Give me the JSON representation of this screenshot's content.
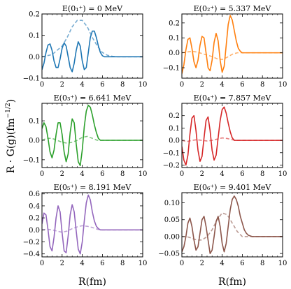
{
  "figure": {
    "ylabel": "R · G(g)(fm",
    "ylabel_exp": "−1/2",
    "ylabel_close": ")",
    "xlabel": "R(fm)"
  },
  "colors": {
    "c0": "#1f77b4",
    "c1": "#ff7f0e",
    "c2": "#2ca02c",
    "c3": "#d62728",
    "c4": "#9467bd",
    "c5": "#8c564b"
  },
  "chart_data": [
    {
      "type": "line",
      "title": "E(0₁⁺) = 0 MeV",
      "color": "#1f77b4",
      "xlim": [
        0,
        10
      ],
      "ylim": [
        -0.1,
        0.2
      ],
      "xticks": [
        0,
        2,
        4,
        6,
        8,
        10
      ],
      "yticks": [
        -0.1,
        0.0,
        0.1,
        0.2
      ],
      "ytick_labels": [
        "−0.1",
        "0.0",
        "0.1",
        "0.2"
      ],
      "series": [
        {
          "style": "solid",
          "x": [
            0.0,
            0.2,
            0.4,
            0.6,
            0.8,
            1.0,
            1.2,
            1.4,
            1.6,
            1.8,
            2.0,
            2.2,
            2.4,
            2.6,
            2.8,
            3.0,
            3.2,
            3.4,
            3.6,
            3.8,
            4.0,
            4.2,
            4.4,
            4.6,
            4.8,
            5.0,
            5.2,
            5.4,
            5.6,
            5.8,
            6.0,
            6.2,
            6.4,
            6.6,
            6.8,
            7.0,
            7.5,
            8.0,
            9.0,
            10.0
          ],
          "y": [
            -0.06,
            -0.03,
            0.02,
            0.055,
            0.06,
            0.03,
            -0.02,
            -0.05,
            -0.05,
            -0.01,
            0.04,
            0.065,
            0.05,
            0.0,
            -0.05,
            -0.07,
            -0.03,
            0.03,
            0.07,
            0.05,
            -0.02,
            -0.06,
            -0.05,
            0.02,
            0.09,
            0.12,
            0.12,
            0.09,
            0.05,
            0.02,
            0.005,
            0.0,
            0.0,
            0.0,
            0.0,
            0.0,
            0.0,
            0.0,
            0.0,
            0.0
          ]
        },
        {
          "style": "dashed",
          "x": [
            0.0,
            0.5,
            1.0,
            1.5,
            2.0,
            2.5,
            3.0,
            3.5,
            4.0,
            4.5,
            5.0,
            5.5,
            6.0,
            6.5,
            7.0,
            7.5,
            8.0,
            9.0,
            10.0
          ],
          "y": [
            0.0,
            0.005,
            0.01,
            0.03,
            0.05,
            0.09,
            0.14,
            0.17,
            0.17,
            0.14,
            0.09,
            0.05,
            0.02,
            0.007,
            0.002,
            0.0,
            0.0,
            0.0,
            0.0
          ]
        }
      ]
    },
    {
      "type": "line",
      "title": "E(0₂⁺) = 5.337 MeV",
      "color": "#ff7f0e",
      "xlim": [
        0,
        10
      ],
      "ylim": [
        -0.17,
        0.26
      ],
      "xticks": [
        0,
        2,
        4,
        6,
        8,
        10
      ],
      "yticks": [
        -0.1,
        0.0,
        0.1,
        0.2
      ],
      "ytick_labels": [
        "−0.1",
        "0.0",
        "0.1",
        "0.2"
      ],
      "series": [
        {
          "style": "solid",
          "x": [
            0.0,
            0.2,
            0.4,
            0.6,
            0.8,
            1.0,
            1.2,
            1.4,
            1.6,
            1.8,
            2.0,
            2.2,
            2.4,
            2.6,
            2.8,
            3.0,
            3.2,
            3.4,
            3.6,
            3.8,
            4.0,
            4.2,
            4.4,
            4.6,
            4.8,
            5.0,
            5.2,
            5.4,
            5.6,
            5.8,
            6.0,
            6.2,
            6.5,
            7.0,
            8.0,
            9.0,
            10.0
          ],
          "y": [
            -0.14,
            -0.08,
            0.02,
            0.09,
            0.1,
            0.03,
            -0.06,
            -0.1,
            -0.05,
            0.05,
            0.11,
            0.1,
            0.0,
            -0.1,
            -0.12,
            -0.05,
            0.07,
            0.13,
            0.08,
            -0.05,
            -0.13,
            -0.09,
            0.05,
            0.19,
            0.25,
            0.22,
            0.15,
            0.08,
            0.03,
            0.01,
            0.0,
            0.0,
            0.0,
            0.0,
            0.0,
            0.0,
            0.0
          ]
        },
        {
          "style": "dashed",
          "x": [
            0.0,
            0.5,
            1.0,
            1.5,
            2.0,
            2.5,
            3.0,
            3.5,
            4.0,
            4.5,
            5.0,
            5.5,
            6.0,
            6.5,
            7.0,
            8.0,
            9.0,
            10.0
          ],
          "y": [
            0.0,
            0.005,
            0.01,
            0.005,
            -0.005,
            -0.015,
            -0.025,
            -0.04,
            -0.045,
            -0.03,
            -0.01,
            0.0,
            0.0,
            0.0,
            0.0,
            0.0,
            0.0,
            0.0
          ]
        }
      ]
    },
    {
      "type": "line",
      "title": "E(0₃⁺) = 6.641 MeV",
      "color": "#2ca02c",
      "xlim": [
        0,
        10
      ],
      "ylim": [
        -0.14,
        0.19
      ],
      "xticks": [
        0,
        2,
        4,
        6,
        8,
        10
      ],
      "yticks": [
        -0.1,
        0.0,
        0.1
      ],
      "ytick_labels": [
        "−0.1",
        "0.0",
        "0.1"
      ],
      "series": [
        {
          "style": "solid",
          "x": [
            0.0,
            0.2,
            0.4,
            0.6,
            0.8,
            1.0,
            1.2,
            1.4,
            1.6,
            1.8,
            2.0,
            2.2,
            2.4,
            2.6,
            2.8,
            3.0,
            3.2,
            3.4,
            3.6,
            3.8,
            4.0,
            4.2,
            4.4,
            4.6,
            4.8,
            5.0,
            5.2,
            5.4,
            5.6,
            5.8,
            6.0,
            6.2,
            6.5,
            7.0,
            8.0,
            9.0,
            10.0
          ],
          "y": [
            0.06,
            0.09,
            0.07,
            0.01,
            -0.06,
            -0.09,
            -0.05,
            0.03,
            0.09,
            0.09,
            0.03,
            -0.06,
            -0.11,
            -0.07,
            0.04,
            0.11,
            0.09,
            -0.02,
            -0.11,
            -0.13,
            -0.05,
            0.07,
            0.15,
            0.18,
            0.17,
            0.13,
            0.08,
            0.04,
            0.01,
            0.0,
            0.0,
            0.0,
            0.0,
            0.0,
            0.0,
            0.0,
            0.0
          ]
        },
        {
          "style": "dashed",
          "x": [
            0.0,
            0.5,
            1.0,
            1.5,
            2.0,
            2.5,
            3.0,
            3.5,
            4.0,
            4.5,
            5.0,
            5.5,
            6.0,
            6.5,
            7.0,
            8.0,
            9.0,
            10.0
          ],
          "y": [
            0.0,
            0.01,
            0.01,
            0.0,
            -0.01,
            -0.015,
            -0.01,
            0.0,
            0.015,
            0.02,
            0.01,
            0.0,
            0.0,
            0.0,
            0.0,
            0.0,
            0.0,
            0.0
          ]
        }
      ]
    },
    {
      "type": "line",
      "title": "E(0₄⁺) = 7.857 MeV",
      "color": "#d62728",
      "xlim": [
        0,
        10
      ],
      "ylim": [
        -0.22,
        0.3
      ],
      "xticks": [
        0,
        2,
        4,
        6,
        8,
        10
      ],
      "yticks": [
        -0.2,
        -0.1,
        0.0,
        0.1,
        0.2
      ],
      "ytick_labels": [
        "−0.2",
        "−0.1",
        "0.0",
        "0.1",
        "0.2"
      ],
      "series": [
        {
          "style": "solid",
          "x": [
            0.0,
            0.2,
            0.4,
            0.6,
            0.8,
            1.0,
            1.2,
            1.4,
            1.6,
            1.8,
            2.0,
            2.2,
            2.4,
            2.6,
            2.8,
            3.0,
            3.2,
            3.4,
            3.6,
            3.8,
            4.0,
            4.2,
            4.4,
            4.6,
            4.8,
            5.0,
            5.2,
            5.4,
            5.6,
            5.8,
            6.0,
            6.5,
            7.0,
            8.0,
            9.0,
            10.0
          ],
          "y": [
            -0.05,
            -0.16,
            -0.2,
            -0.12,
            0.05,
            0.18,
            0.2,
            0.08,
            -0.08,
            -0.17,
            -0.13,
            0.02,
            0.16,
            0.19,
            0.08,
            -0.08,
            -0.16,
            -0.12,
            0.02,
            0.16,
            0.25,
            0.27,
            0.22,
            0.14,
            0.07,
            0.02,
            0.0,
            0.0,
            0.0,
            0.0,
            0.0,
            0.0,
            0.0,
            0.0,
            0.0,
            0.0
          ]
        },
        {
          "style": "dashed",
          "x": [
            0.0,
            0.5,
            1.0,
            1.5,
            2.0,
            2.5,
            3.0,
            3.5,
            4.0,
            4.5,
            5.0,
            5.5,
            6.0,
            7.0,
            8.0,
            9.0,
            10.0
          ],
          "y": [
            0.0,
            -0.01,
            0.0,
            0.005,
            0.0,
            -0.005,
            0.0,
            0.01,
            0.02,
            0.015,
            0.005,
            0.0,
            0.0,
            0.0,
            0.0,
            0.0,
            0.0
          ]
        }
      ]
    },
    {
      "type": "line",
      "title": "E(0₅⁺) = 8.191 MeV",
      "color": "#9467bd",
      "xlim": [
        0,
        10
      ],
      "ylim": [
        -0.45,
        0.62
      ],
      "xticks": [
        0,
        2,
        4,
        6,
        8,
        10
      ],
      "yticks": [
        -0.4,
        -0.2,
        0.0,
        0.2,
        0.4,
        0.6
      ],
      "ytick_labels": [
        "−0.4",
        "−0.2",
        "0.0",
        "0.2",
        "0.4",
        "0.6"
      ],
      "series": [
        {
          "style": "solid",
          "x": [
            0.0,
            0.2,
            0.4,
            0.6,
            0.8,
            1.0,
            1.2,
            1.4,
            1.6,
            1.8,
            2.0,
            2.2,
            2.4,
            2.6,
            2.8,
            3.0,
            3.2,
            3.4,
            3.6,
            3.8,
            4.0,
            4.2,
            4.4,
            4.6,
            4.8,
            5.0,
            5.2,
            5.4,
            5.6,
            5.8,
            6.0,
            6.5,
            7.0,
            8.0,
            9.0,
            10.0
          ],
          "y": [
            0.1,
            0.28,
            0.25,
            0.0,
            -0.28,
            -0.35,
            -0.12,
            0.2,
            0.4,
            0.3,
            -0.05,
            -0.35,
            -0.38,
            -0.1,
            0.25,
            0.42,
            0.3,
            -0.02,
            -0.32,
            -0.4,
            -0.2,
            0.15,
            0.45,
            0.58,
            0.5,
            0.3,
            0.15,
            0.06,
            0.02,
            0.0,
            0.0,
            0.0,
            0.0,
            0.0,
            0.0,
            0.0
          ]
        },
        {
          "style": "dashed",
          "x": [
            0.0,
            0.5,
            1.0,
            1.5,
            2.0,
            2.5,
            3.0,
            3.5,
            4.0,
            4.5,
            5.0,
            5.5,
            6.0,
            7.0,
            8.0,
            9.0,
            10.0
          ],
          "y": [
            0.0,
            0.01,
            0.0,
            -0.02,
            -0.04,
            -0.02,
            0.02,
            0.05,
            0.07,
            0.06,
            0.04,
            0.01,
            0.0,
            0.0,
            0.0,
            0.0,
            0.0
          ]
        }
      ]
    },
    {
      "type": "line",
      "title": "E(0₆⁺) = 9.401 MeV",
      "color": "#8c564b",
      "xlim": [
        0,
        10
      ],
      "ylim": [
        -0.06,
        0.13
      ],
      "xticks": [
        0,
        2,
        4,
        6,
        8,
        10
      ],
      "yticks": [
        -0.05,
        0.0,
        0.05,
        0.1
      ],
      "ytick_labels": [
        "−0.05",
        "0.00",
        "0.05",
        "0.10"
      ],
      "series": [
        {
          "style": "solid",
          "x": [
            0.0,
            0.2,
            0.4,
            0.6,
            0.8,
            1.0,
            1.2,
            1.4,
            1.6,
            1.8,
            2.0,
            2.2,
            2.4,
            2.6,
            2.8,
            3.0,
            3.2,
            3.4,
            3.6,
            3.8,
            4.0,
            4.2,
            4.4,
            4.6,
            4.8,
            5.0,
            5.2,
            5.4,
            5.6,
            5.8,
            6.0,
            6.2,
            6.4,
            6.6,
            7.0,
            7.5,
            8.0,
            9.0,
            10.0
          ],
          "y": [
            -0.045,
            -0.03,
            0.0,
            0.04,
            0.055,
            0.03,
            -0.01,
            -0.04,
            -0.03,
            0.01,
            0.05,
            0.06,
            0.03,
            -0.01,
            -0.05,
            -0.04,
            0.0,
            0.045,
            0.06,
            0.03,
            -0.02,
            -0.045,
            -0.02,
            0.03,
            0.08,
            0.11,
            0.12,
            0.11,
            0.09,
            0.06,
            0.04,
            0.02,
            0.01,
            0.004,
            0.0,
            0.0,
            0.0,
            0.0,
            0.0
          ]
        },
        {
          "style": "dashed",
          "x": [
            0.0,
            0.5,
            1.0,
            1.5,
            2.0,
            2.5,
            3.0,
            3.5,
            4.0,
            4.5,
            5.0,
            5.5,
            6.0,
            6.5,
            7.0,
            8.0,
            9.0,
            10.0
          ],
          "y": [
            0.0,
            0.0,
            -0.005,
            -0.01,
            -0.01,
            0.0,
            0.02,
            0.05,
            0.07,
            0.065,
            0.04,
            0.015,
            0.0,
            0.0,
            0.0,
            0.0,
            0.0,
            0.0
          ]
        }
      ]
    }
  ]
}
